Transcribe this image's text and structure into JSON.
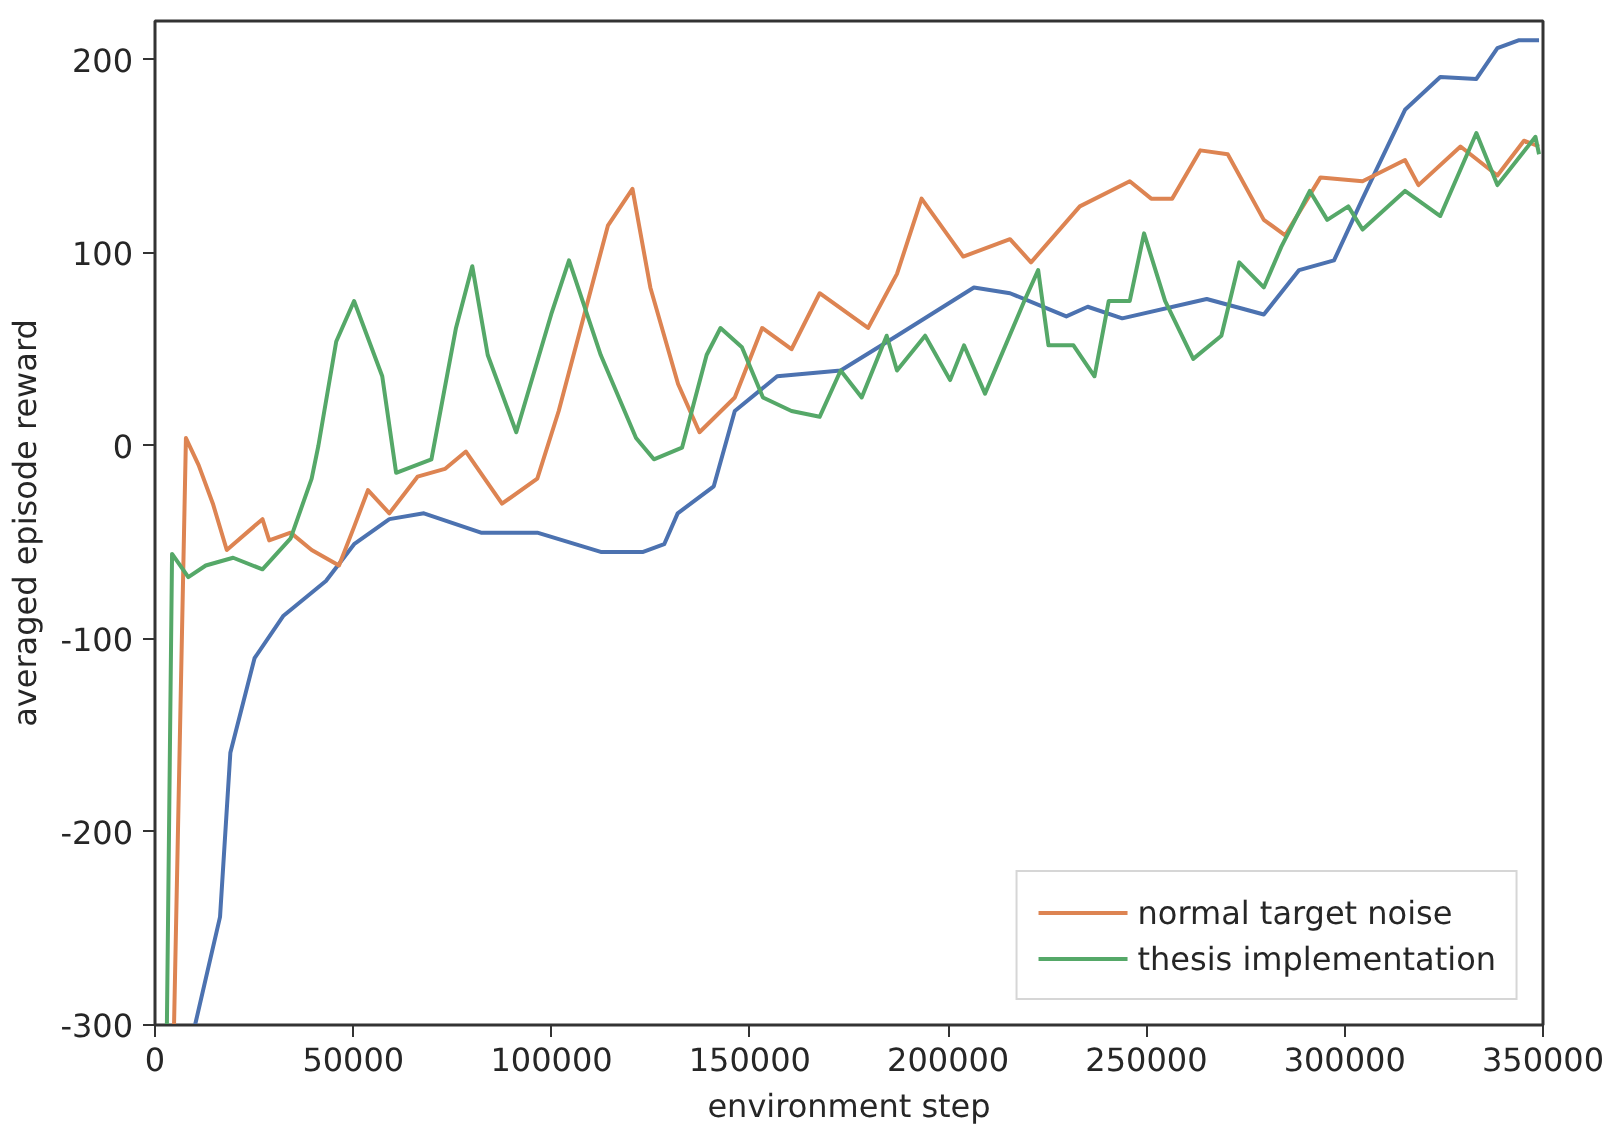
{
  "chart_data": {
    "type": "line",
    "xlabel": "environment step",
    "ylabel": "averaged episode reward",
    "xlim": [
      0,
      350000
    ],
    "ylim": [
      -300,
      220
    ],
    "xticks": [
      0,
      50000,
      100000,
      150000,
      200000,
      250000,
      300000,
      350000
    ],
    "yticks": [
      -300,
      -200,
      -100,
      0,
      100,
      200
    ],
    "grid": false,
    "legend": "bottom right",
    "line_style": "solid",
    "marker": "none",
    "series": [
      {
        "color": "#4c72b0",
        "x": [
          10100,
          16400,
          19000,
          25100,
          32400,
          43100,
          50200,
          59100,
          67800,
          82200,
          96400,
          112400,
          123100,
          128400,
          131800,
          140900,
          146200,
          156900,
          172900,
          187100,
          206500,
          215600,
          229800,
          235200,
          243900,
          265200,
          279600,
          288500,
          297300,
          304500,
          315200,
          324100,
          333200,
          338500,
          343800,
          349000
        ],
        "values": [
          -300,
          -244,
          -159,
          -110,
          -88,
          -70,
          -51,
          -38,
          -35,
          -45,
          -45,
          -55,
          -55,
          -51,
          -35,
          -21,
          18,
          36,
          39,
          57,
          82,
          79,
          67,
          72,
          66,
          76,
          68,
          91,
          96,
          128,
          174,
          191,
          190,
          206,
          210,
          210
        ]
      },
      {
        "name": "normal target noise",
        "color": "#dd8452",
        "x": [
          4800,
          7800,
          11000,
          14600,
          18100,
          27100,
          28800,
          34200,
          39500,
          46400,
          50200,
          53700,
          59100,
          66200,
          73100,
          78400,
          87500,
          96400,
          101800,
          114200,
          120400,
          124900,
          131900,
          137300,
          146200,
          153100,
          160500,
          167600,
          179800,
          187100,
          193300,
          203800,
          215600,
          220900,
          233200,
          245800,
          251200,
          256500,
          263600,
          270500,
          279600,
          285000,
          293900,
          304500,
          315200,
          318600,
          329200,
          338500,
          345200,
          349000
        ],
        "values": [
          -300,
          4,
          -10,
          -30,
          -54,
          -38,
          -49,
          -45,
          -54,
          -62,
          -42,
          -23,
          -35,
          -16,
          -12,
          -3,
          -30,
          -17,
          18,
          114,
          133,
          82,
          32,
          7,
          25,
          61,
          50,
          79,
          61,
          89,
          128,
          98,
          107,
          95,
          124,
          137,
          128,
          128,
          153,
          151,
          117,
          109,
          139,
          137,
          148,
          135,
          155,
          140,
          158,
          155
        ]
      },
      {
        "name": "thesis implementation",
        "color": "#55a868",
        "x": [
          3000,
          4300,
          8400,
          12800,
          19700,
          27100,
          34200,
          39500,
          41200,
          45700,
          50200,
          57300,
          60800,
          69700,
          75900,
          80000,
          83900,
          91100,
          99900,
          104400,
          112400,
          121300,
          125800,
          132900,
          139100,
          142600,
          148000,
          153300,
          160500,
          167600,
          172900,
          178200,
          184500,
          187100,
          194200,
          200500,
          204000,
          209300,
          219200,
          222700,
          225300,
          231600,
          236900,
          240500,
          245800,
          249400,
          254700,
          261800,
          268900,
          273400,
          279600,
          284000,
          291200,
          295600,
          300900,
          304500,
          315200,
          324100,
          333200,
          338500,
          348100,
          349000
        ],
        "values": [
          -300,
          -56,
          -68,
          -62,
          -58,
          -64,
          -48,
          -17,
          0,
          54,
          75,
          36,
          -14,
          -7,
          61,
          93,
          47,
          7,
          68,
          96,
          47,
          4,
          -7,
          -1,
          47,
          61,
          51,
          25,
          18,
          15,
          39,
          25,
          57,
          39,
          57,
          34,
          52,
          27,
          75,
          91,
          52,
          52,
          36,
          75,
          75,
          110,
          75,
          45,
          57,
          95,
          82,
          103,
          132,
          117,
          124,
          112,
          132,
          119,
          162,
          135,
          160,
          151
        ]
      }
    ]
  }
}
